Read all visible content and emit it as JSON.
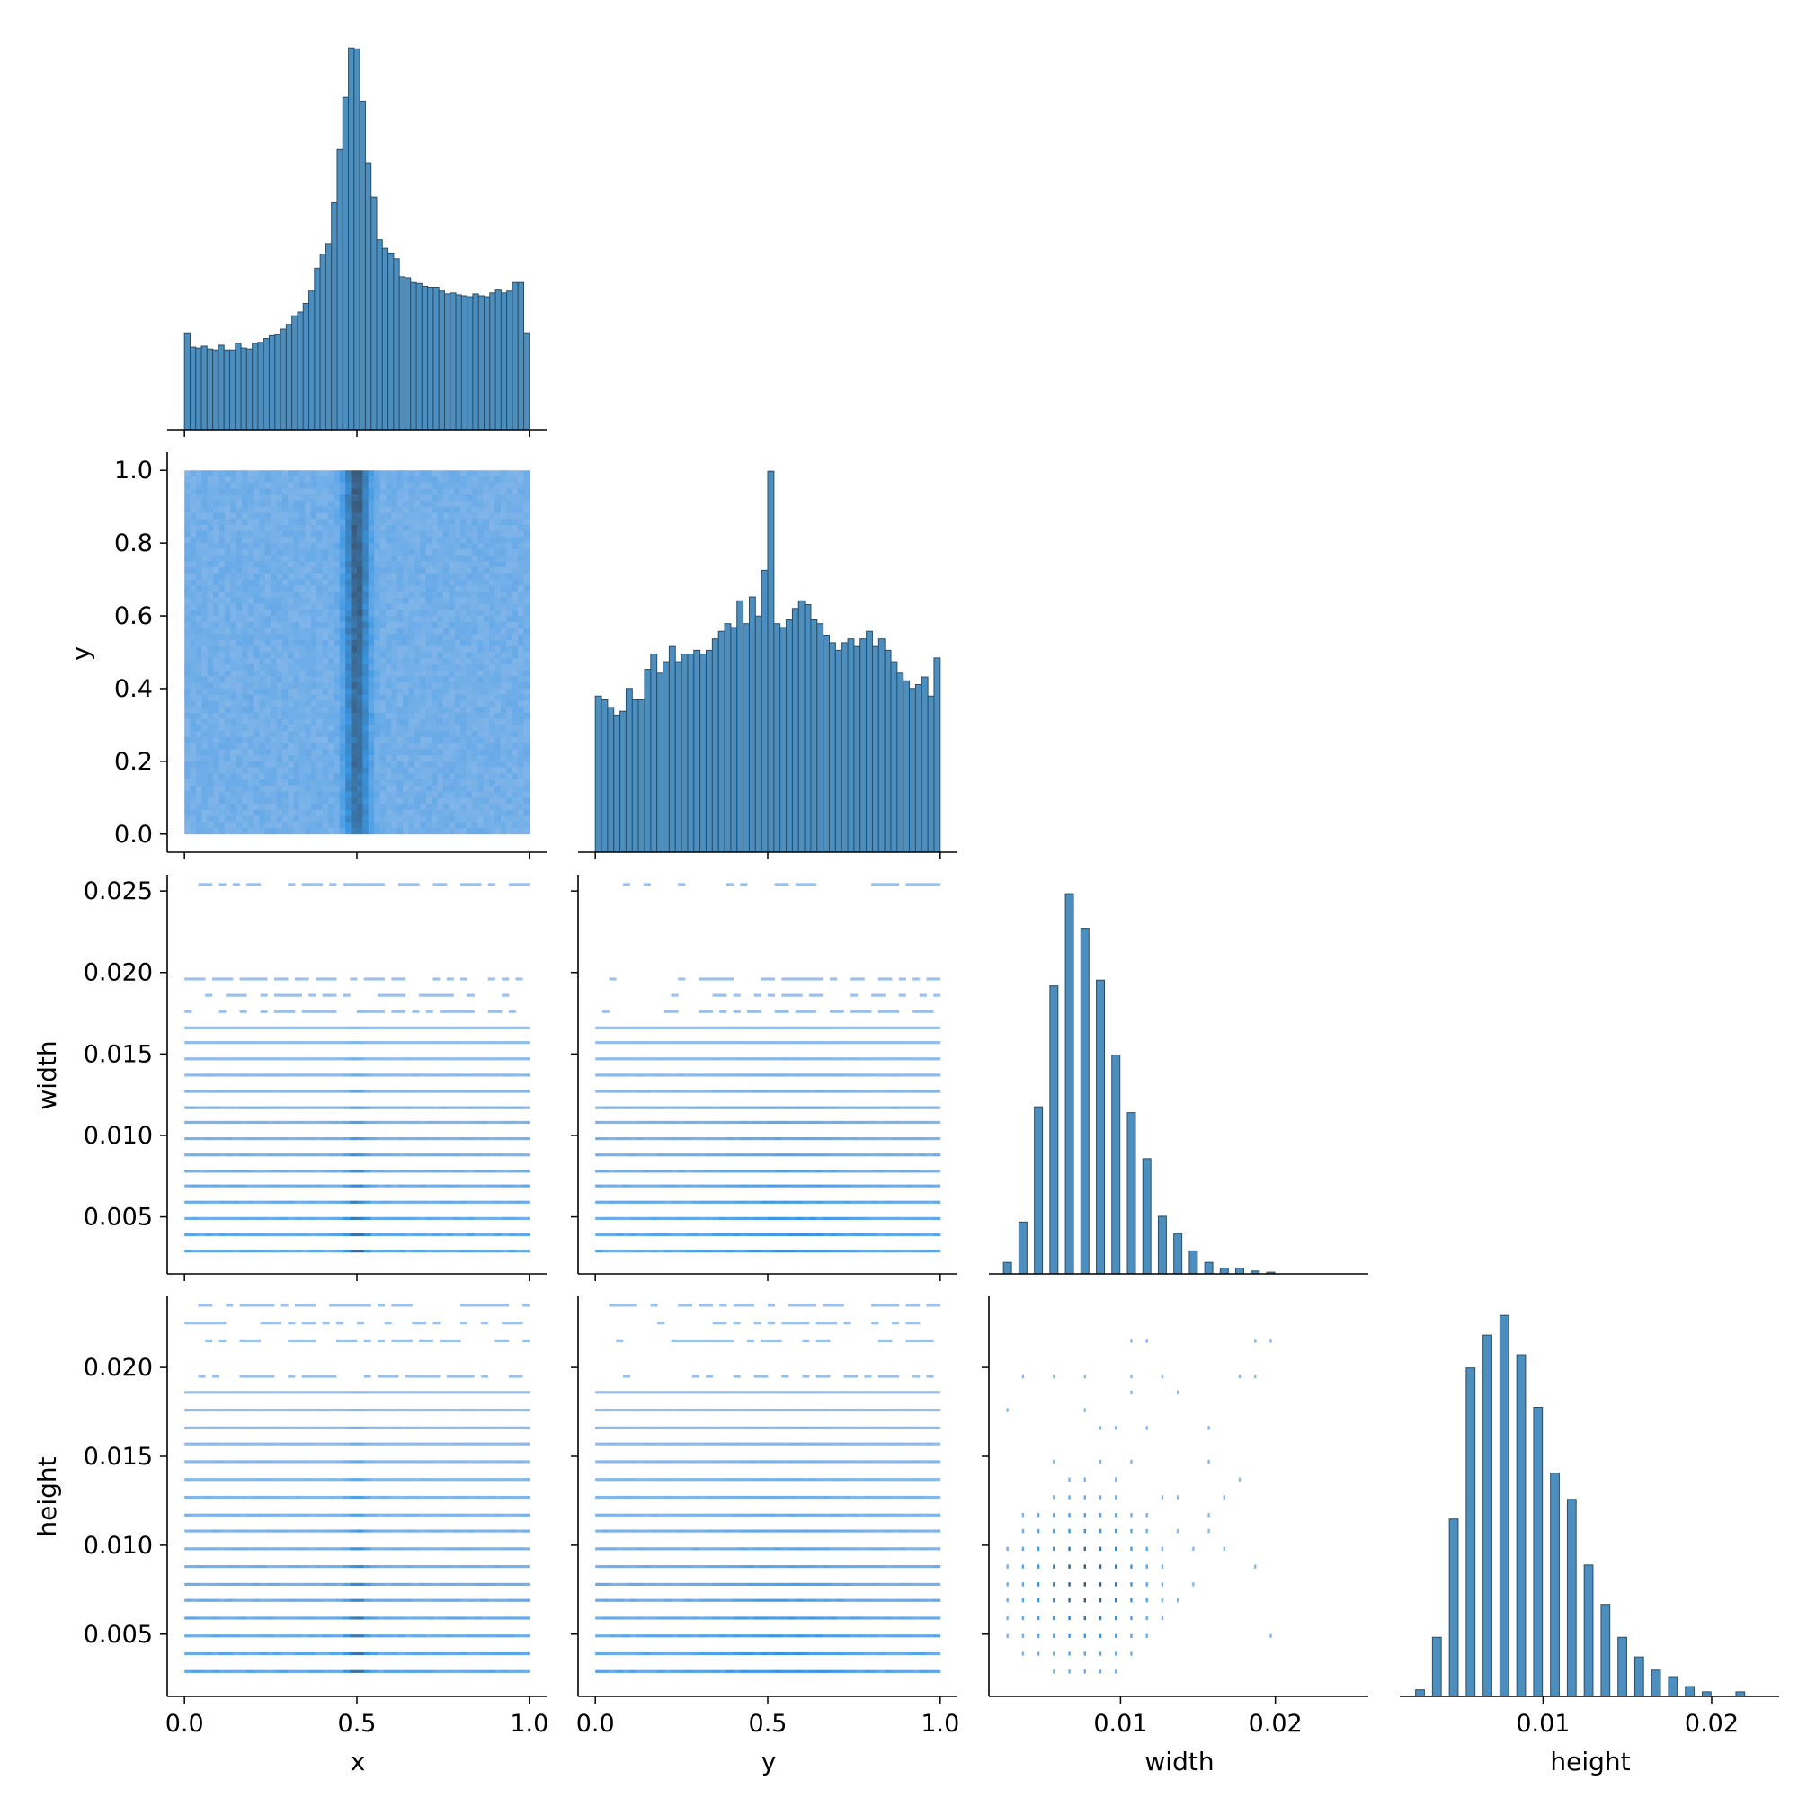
{
  "chart_data": {
    "type": "pairplot",
    "variables": [
      "x",
      "y",
      "width",
      "height"
    ],
    "layout": "lower-corner",
    "colors": {
      "bar": "#4c8fbf",
      "bar_edge": "#2a4d66",
      "hist2d_light": "#a9c6ec",
      "hist2d_mid": "#3a97e4",
      "hist2d_dark": "#3a4a5e"
    },
    "axes_labels": {
      "x": "x",
      "y": "y",
      "width": "width",
      "height": "height"
    },
    "ranges": {
      "x": [
        -0.05,
        1.05
      ],
      "y": [
        -0.05,
        1.05
      ],
      "width": [
        0.0015,
        0.026
      ],
      "height": [
        0.0015,
        0.024
      ]
    },
    "ticks": {
      "x": {
        "values": [
          0.0,
          0.5,
          1.0
        ],
        "labels": [
          "0.0",
          "0.5",
          "1.0"
        ]
      },
      "y": {
        "values": [
          0.0,
          0.2,
          0.4,
          0.6,
          0.8,
          1.0
        ],
        "labels": [
          "0.0",
          "0.2",
          "0.4",
          "0.6",
          "0.8",
          "1.0"
        ]
      },
      "width": {
        "values": [
          0.005,
          0.01,
          0.015,
          0.02,
          0.025
        ],
        "labels": [
          "0.005",
          "0.010",
          "0.015",
          "0.020",
          "0.025"
        ]
      },
      "height": {
        "values": [
          0.005,
          0.01,
          0.015,
          0.02
        ],
        "labels": [
          "0.005",
          "0.010",
          "0.015",
          "0.020"
        ]
      },
      "width_x": {
        "values": [
          0.01,
          0.02
        ],
        "labels": [
          "0.01",
          "0.02"
        ]
      },
      "height_x": {
        "values": [
          0.01,
          0.02
        ],
        "labels": [
          "0.01",
          "0.02"
        ]
      }
    },
    "histograms": {
      "x": {
        "range": [
          0,
          1
        ],
        "counts": [
          102,
          87,
          86,
          88,
          85,
          84,
          89,
          84,
          84,
          91,
          86,
          85,
          91,
          92,
          96,
          99,
          100,
          106,
          111,
          120,
          124,
          133,
          146,
          170,
          185,
          196,
          239,
          295,
          350,
          402,
          401,
          346,
          281,
          245,
          200,
          191,
          186,
          180,
          161,
          160,
          155,
          154,
          151,
          150,
          150,
          146,
          143,
          144,
          142,
          141,
          140,
          143,
          141,
          140,
          144,
          147,
          144,
          146,
          155,
          155,
          102
        ]
      },
      "y": {
        "range": [
          0,
          1
        ],
        "counts": [
          41,
          40,
          38,
          36,
          37,
          43,
          40,
          40,
          48,
          52,
          47,
          50,
          54,
          50,
          52,
          52,
          53,
          52,
          53,
          56,
          58,
          60,
          59,
          66,
          60,
          67,
          62,
          74,
          100,
          60,
          59,
          61,
          64,
          66,
          65,
          61,
          60,
          57,
          55,
          53,
          55,
          56,
          54,
          56,
          58,
          54,
          56,
          53,
          50,
          47,
          45,
          43,
          44,
          46,
          41,
          51
        ]
      },
      "width": {
        "bins_x": [
          0.0027,
          0.0037,
          0.0047,
          0.0057,
          0.0067,
          0.0077,
          0.0087,
          0.0097,
          0.0107,
          0.0117,
          0.0127,
          0.0137,
          0.0147,
          0.0157,
          0.0167,
          0.0177,
          0.0187,
          0.0197
        ],
        "counts": [
          2,
          9,
          29,
          50,
          66,
          60,
          51,
          38,
          28,
          20,
          10,
          7,
          4,
          2,
          1,
          1,
          0.5,
          0.3
        ]
      },
      "height": {
        "bins_x": [
          0.0027,
          0.0037,
          0.0047,
          0.0057,
          0.0067,
          0.0077,
          0.0087,
          0.0097,
          0.0107,
          0.0117,
          0.0127,
          0.0137,
          0.0147,
          0.0157,
          0.0167,
          0.0177,
          0.0187,
          0.0197,
          0.0217
        ],
        "counts": [
          1,
          9,
          27,
          50,
          55,
          58,
          52,
          44,
          34,
          30,
          20,
          14,
          9,
          6,
          4,
          3,
          1.5,
          0.7,
          0.7
        ]
      }
    },
    "width_levels": [
      0.0029,
      0.0039,
      0.0049,
      0.0059,
      0.0069,
      0.0078,
      0.0088,
      0.0098,
      0.0108,
      0.0117,
      0.0127,
      0.0137,
      0.0147,
      0.0157,
      0.0166,
      0.0176,
      0.0186,
      0.0196,
      0.0254
    ],
    "height_levels": [
      0.0029,
      0.0039,
      0.0049,
      0.0059,
      0.0069,
      0.0078,
      0.0088,
      0.0098,
      0.0108,
      0.0117,
      0.0127,
      0.0137,
      0.0147,
      0.0157,
      0.0166,
      0.0176,
      0.0186,
      0.0195,
      0.0215,
      0.0225,
      0.0235
    ]
  }
}
